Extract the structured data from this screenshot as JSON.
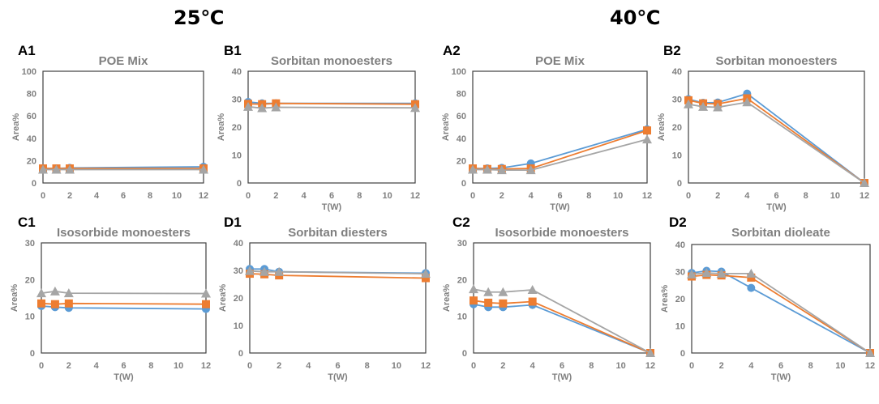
{
  "headings": {
    "left": "25℃",
    "right": "40℃"
  },
  "colors": {
    "series1": "#5b9bd5",
    "series2": "#ed7d31",
    "series3": "#a5a5a5"
  },
  "chart_data": [
    {
      "id": "A1",
      "panel_label": "A1",
      "type": "line",
      "title": "POE Mix",
      "xlabel": "",
      "ylabel": "Area%",
      "xlim": [
        0,
        12
      ],
      "ylim": [
        0,
        100
      ],
      "xticks": [
        0,
        2,
        4,
        6,
        8,
        10,
        12
      ],
      "yticks": [
        0,
        20,
        40,
        60,
        80,
        100
      ],
      "x": [
        0,
        1,
        2,
        12
      ],
      "series": [
        {
          "name": "series 1",
          "marker": "circle",
          "values": [
            13,
            13,
            13.5,
            14.5
          ]
        },
        {
          "name": "series 2",
          "marker": "square",
          "values": [
            13,
            13,
            13,
            13
          ]
        },
        {
          "name": "series 3",
          "marker": "triangle",
          "values": [
            12,
            12,
            12,
            12
          ]
        }
      ]
    },
    {
      "id": "B1",
      "panel_label": "B1",
      "type": "line",
      "title": "Sorbitan monoesters",
      "xlabel": "T(W)",
      "ylabel": "Area%",
      "xlim": [
        0,
        12
      ],
      "ylim": [
        0,
        40
      ],
      "xticks": [
        0,
        2,
        4,
        6,
        8,
        10,
        12
      ],
      "yticks": [
        0,
        10,
        20,
        30,
        40
      ],
      "x": [
        0,
        1,
        2,
        12
      ],
      "series": [
        {
          "name": "series 1",
          "marker": "circle",
          "values": [
            29,
            28.5,
            28.5,
            28.5
          ]
        },
        {
          "name": "series 2",
          "marker": "square",
          "values": [
            28.3,
            28.2,
            28.5,
            28.2
          ]
        },
        {
          "name": "series 3",
          "marker": "triangle",
          "values": [
            27.3,
            26.8,
            27.1,
            26.9
          ]
        }
      ]
    },
    {
      "id": "A2",
      "panel_label": "A2",
      "type": "line",
      "title": "POE Mix",
      "xlabel": "T(W)",
      "ylabel": "Area%",
      "xlim": [
        0,
        12
      ],
      "ylim": [
        0,
        100
      ],
      "xticks": [
        0,
        2,
        4,
        6,
        8,
        10,
        12
      ],
      "yticks": [
        0,
        20,
        40,
        60,
        80,
        100
      ],
      "x": [
        0,
        1,
        2,
        4,
        12
      ],
      "series": [
        {
          "name": "series 1",
          "marker": "circle",
          "values": [
            13,
            13,
            13.5,
            17.5,
            48
          ]
        },
        {
          "name": "series 2",
          "marker": "square",
          "values": [
            13,
            12.5,
            12.5,
            13,
            47
          ]
        },
        {
          "name": "series 3",
          "marker": "triangle",
          "values": [
            12,
            12,
            11.5,
            11.5,
            39
          ]
        }
      ]
    },
    {
      "id": "B2",
      "panel_label": "B2",
      "type": "line",
      "title": "Sorbitan monoesters",
      "xlabel": "T(W)",
      "ylabel": "Area%",
      "xlim": [
        0,
        12
      ],
      "ylim": [
        0,
        40
      ],
      "xticks": [
        0,
        2,
        4,
        6,
        8,
        10,
        12
      ],
      "yticks": [
        0,
        10,
        20,
        30,
        40
      ],
      "x": [
        0,
        1,
        2,
        4,
        12
      ],
      "series": [
        {
          "name": "series 1",
          "marker": "circle",
          "values": [
            30,
            28.7,
            28.8,
            32,
            0
          ]
        },
        {
          "name": "series 2",
          "marker": "square",
          "values": [
            29.6,
            28.5,
            28.3,
            30.3,
            0
          ]
        },
        {
          "name": "series 3",
          "marker": "triangle",
          "values": [
            28.2,
            27.3,
            27.1,
            28.9,
            0
          ]
        }
      ]
    },
    {
      "id": "C1",
      "panel_label": "C1",
      "type": "line",
      "title": "Isosorbide monoesters",
      "xlabel": "T(W)",
      "ylabel": "Area%",
      "xlim": [
        0,
        12
      ],
      "ylim": [
        0,
        30
      ],
      "xticks": [
        0,
        2,
        4,
        6,
        8,
        10,
        12
      ],
      "yticks": [
        0,
        10,
        20,
        30
      ],
      "x": [
        0,
        1,
        2,
        12
      ],
      "series": [
        {
          "name": "series 1",
          "marker": "circle",
          "values": [
            12.8,
            12.5,
            12.3,
            12
          ]
        },
        {
          "name": "series 2",
          "marker": "square",
          "values": [
            13.5,
            13.3,
            13.5,
            13.3
          ]
        },
        {
          "name": "series 3",
          "marker": "triangle",
          "values": [
            16.3,
            16.8,
            16.3,
            16.2
          ]
        }
      ]
    },
    {
      "id": "D1",
      "panel_label": "D1",
      "type": "line",
      "title": "Sorbitan diesters",
      "xlabel": "T(W)",
      "ylabel": "Area%",
      "xlim": [
        0,
        12
      ],
      "ylim": [
        0,
        40
      ],
      "xticks": [
        0,
        2,
        4,
        6,
        8,
        10,
        12
      ],
      "yticks": [
        0,
        10,
        20,
        30,
        40
      ],
      "x": [
        0,
        1,
        2,
        12
      ],
      "series": [
        {
          "name": "series 1",
          "marker": "circle",
          "values": [
            30.5,
            30.5,
            29.5,
            29
          ]
        },
        {
          "name": "series 2",
          "marker": "square",
          "values": [
            28.8,
            28.6,
            28.2,
            27.2
          ]
        },
        {
          "name": "series 3",
          "marker": "triangle",
          "values": [
            29.8,
            29.5,
            29.5,
            28.8
          ]
        }
      ]
    },
    {
      "id": "C2",
      "panel_label": "C2",
      "type": "line",
      "title": "Isosorbide monoesters",
      "xlabel": "T(W)",
      "ylabel": "Area%",
      "xlim": [
        0,
        12
      ],
      "ylim": [
        0,
        30
      ],
      "xticks": [
        0,
        2,
        4,
        6,
        8,
        10,
        12
      ],
      "yticks": [
        0,
        10,
        20,
        30
      ],
      "x": [
        0,
        1,
        2,
        4,
        12
      ],
      "series": [
        {
          "name": "series 1",
          "marker": "circle",
          "values": [
            13.3,
            12.5,
            12.5,
            13.1,
            0
          ]
        },
        {
          "name": "series 2",
          "marker": "square",
          "values": [
            14.3,
            13.7,
            13.5,
            14,
            0
          ]
        },
        {
          "name": "series 3",
          "marker": "triangle",
          "values": [
            17.4,
            16.6,
            16.6,
            17.2,
            0
          ]
        }
      ]
    },
    {
      "id": "D2",
      "panel_label": "D2",
      "type": "line",
      "title": "Sorbitan dioleate",
      "xlabel": "T(W)",
      "ylabel": "Area%",
      "xlim": [
        0,
        12
      ],
      "ylim": [
        0,
        40
      ],
      "xticks": [
        0,
        2,
        4,
        6,
        8,
        10,
        12
      ],
      "yticks": [
        0,
        10,
        20,
        30,
        40
      ],
      "x": [
        0,
        1,
        2,
        4,
        12
      ],
      "series": [
        {
          "name": "series 1",
          "marker": "circle",
          "values": [
            29.5,
            30.3,
            30,
            24,
            0
          ]
        },
        {
          "name": "series 2",
          "marker": "square",
          "values": [
            28.2,
            28.8,
            28.6,
            27.8,
            0
          ]
        },
        {
          "name": "series 3",
          "marker": "triangle",
          "values": [
            29,
            29.5,
            29.3,
            29.3,
            0
          ]
        }
      ]
    }
  ]
}
